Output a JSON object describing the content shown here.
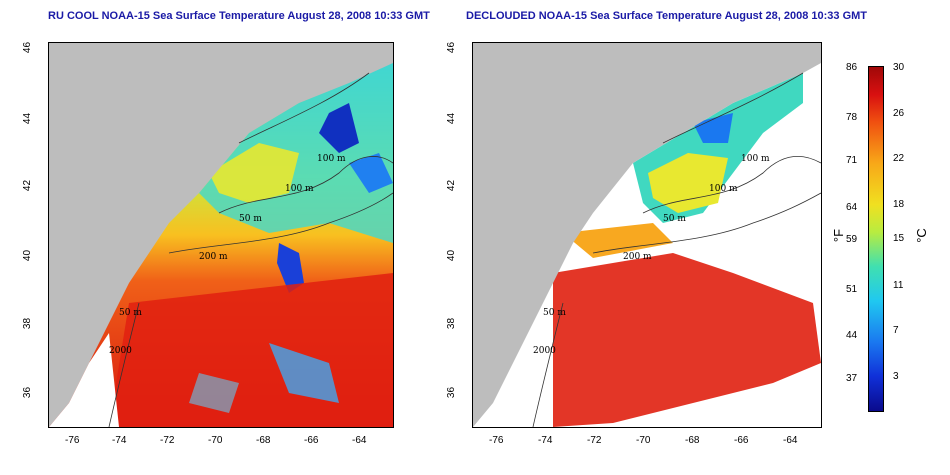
{
  "titles": {
    "left": "RU COOL NOAA-15 Sea Surface Temperature August 28, 2008 10:33 GMT",
    "right": "DECLOUDED NOAA-15 Sea Surface Temperature August 28, 2008 10:33 GMT"
  },
  "axes": {
    "x_ticks": [
      "-76",
      "-74",
      "-72",
      "-70",
      "-68",
      "-66",
      "-64"
    ],
    "y_ticks": [
      "46",
      "44",
      "42",
      "40",
      "38",
      "36"
    ]
  },
  "contour_labels": {
    "left": [
      "100 m",
      "100 m",
      "50 m",
      "200 m",
      "50 m",
      "2000"
    ],
    "right": [
      "100 m",
      "100 m",
      "50 m",
      "200 m",
      "50 m",
      "2000"
    ]
  },
  "colorbar": {
    "fahrenheit": [
      "86",
      "78",
      "71",
      "64",
      "59",
      "51",
      "44",
      "37"
    ],
    "celsius": [
      "30",
      "26",
      "22",
      "18",
      "15",
      "11",
      "7",
      "3"
    ],
    "unit_f": "°F",
    "unit_c": "°C"
  },
  "colors": {
    "land": "#bdbdbd",
    "title": "#1a1aa6",
    "warm": "#e02010",
    "cool": "#1a60e8"
  }
}
